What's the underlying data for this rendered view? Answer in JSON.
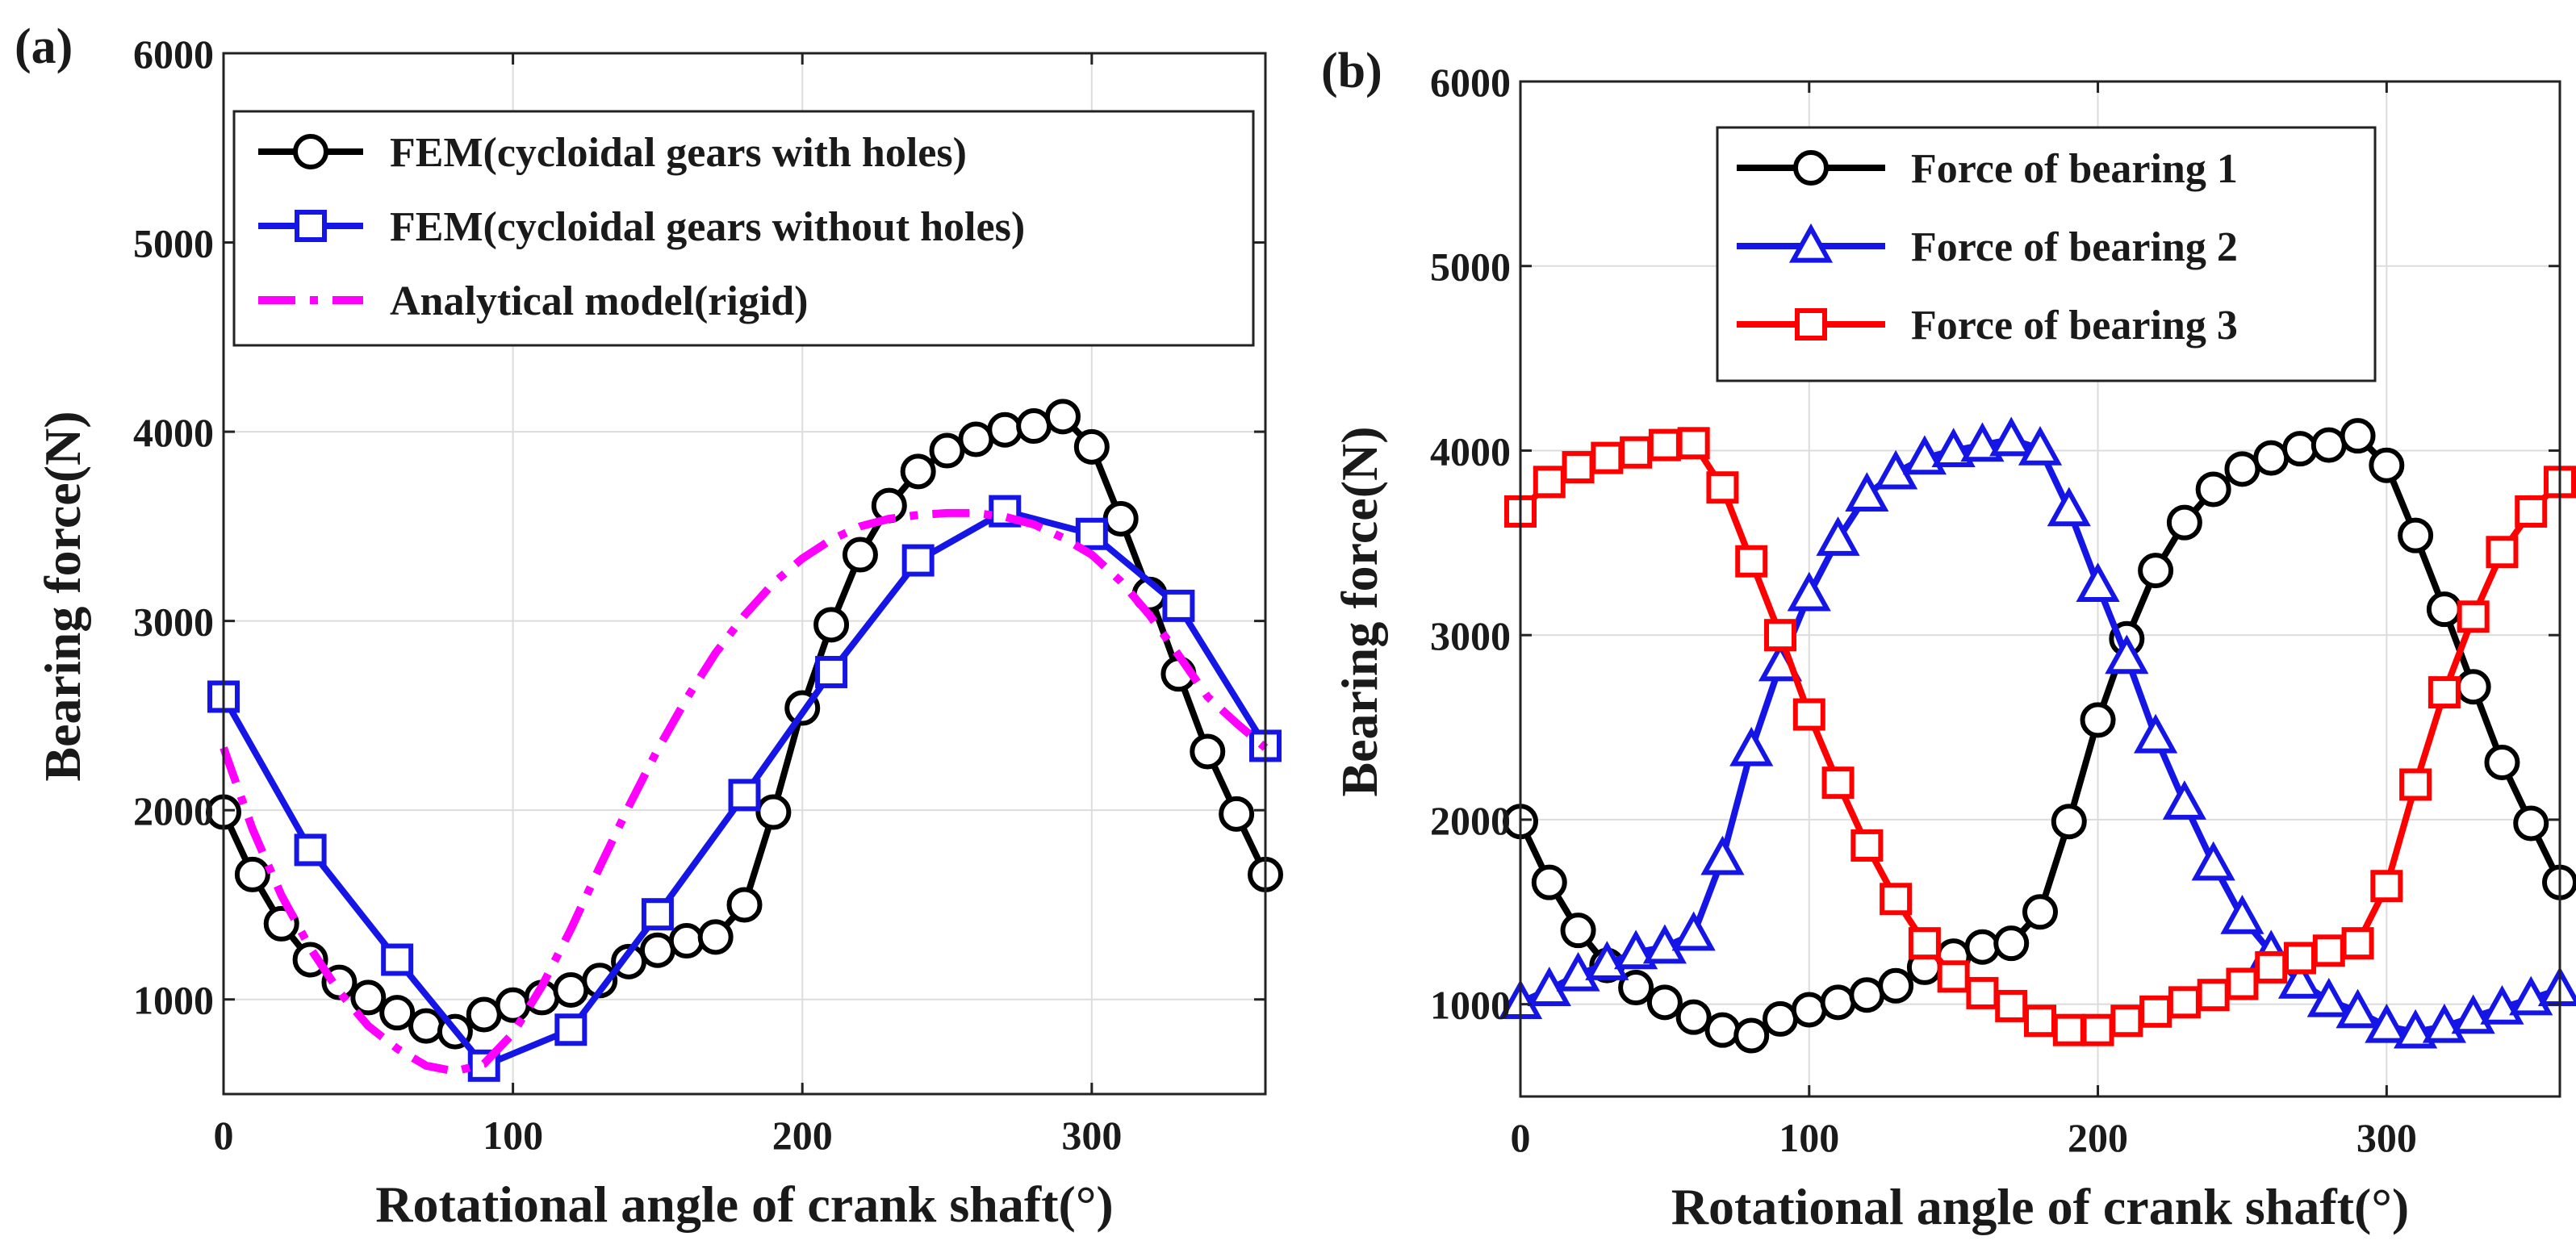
{
  "chart_data": [
    {
      "panel_label": "(a)",
      "type": "line",
      "xlabel": "Rotational angle of crank shaft(°)",
      "ylabel": "Bearing force(N)",
      "xlim": [
        0,
        360
      ],
      "ylim": [
        500,
        6000
      ],
      "xticks": [
        0,
        100,
        200,
        300
      ],
      "yticks": [
        1000,
        2000,
        3000,
        4000,
        5000,
        6000
      ],
      "grid": true,
      "legend_position": "top-left",
      "series": [
        {
          "name": "FEM(cycloidal gears with holes)",
          "color": "#000000",
          "marker": "circle",
          "dash": "solid",
          "x": [
            0,
            10,
            20,
            30,
            40,
            50,
            60,
            70,
            80,
            90,
            100,
            110,
            120,
            130,
            140,
            150,
            160,
            170,
            180,
            190,
            200,
            210,
            220,
            230,
            240,
            250,
            260,
            270,
            280,
            290,
            300,
            310,
            320,
            330,
            340,
            350,
            360
          ],
          "y": [
            1990,
            1660,
            1400,
            1210,
            1090,
            1010,
            930,
            860,
            830,
            920,
            970,
            1010,
            1050,
            1100,
            1200,
            1260,
            1310,
            1330,
            1500,
            1990,
            2540,
            2980,
            3350,
            3610,
            3790,
            3900,
            3960,
            4010,
            4030,
            4080,
            3920,
            3540,
            3140,
            2720,
            2310,
            1980,
            1660
          ]
        },
        {
          "name": "FEM(cycloidal gears without holes)",
          "color": "#1515e6",
          "marker": "square",
          "dash": "solid",
          "x": [
            0,
            30,
            60,
            90,
            120,
            150,
            180,
            210,
            240,
            270,
            300,
            330,
            360
          ],
          "y": [
            2600,
            1790,
            1210,
            650,
            840,
            1450,
            2080,
            2730,
            3320,
            3580,
            3460,
            3080,
            2340
          ]
        },
        {
          "name": "Analytical model(rigid)",
          "color": "#ff00ff",
          "marker": "none",
          "dash": "dash-dot",
          "x": [
            0,
            10,
            20,
            30,
            40,
            50,
            60,
            70,
            80,
            90,
            100,
            110,
            120,
            130,
            140,
            150,
            160,
            170,
            180,
            190,
            200,
            210,
            220,
            230,
            240,
            250,
            260,
            270,
            280,
            290,
            300,
            310,
            320,
            330,
            340,
            350,
            360
          ],
          "y": [
            2330,
            1900,
            1550,
            1270,
            1040,
            860,
            740,
            650,
            620,
            660,
            820,
            1070,
            1370,
            1700,
            2020,
            2320,
            2590,
            2830,
            3030,
            3200,
            3330,
            3430,
            3500,
            3540,
            3560,
            3570,
            3570,
            3550,
            3510,
            3440,
            3350,
            3210,
            3030,
            2820,
            2600,
            2460,
            2330
          ]
        }
      ]
    },
    {
      "panel_label": "(b)",
      "type": "line",
      "xlabel": "Rotational angle of crank shaft(°)",
      "ylabel": "Bearing force(N)",
      "xlim": [
        0,
        360
      ],
      "ylim": [
        500,
        6000
      ],
      "xticks": [
        0,
        100,
        200,
        300
      ],
      "yticks": [
        1000,
        2000,
        3000,
        4000,
        5000,
        6000
      ],
      "grid": true,
      "legend_position": "top-center",
      "series": [
        {
          "name": "Force of bearing 1",
          "color": "#000000",
          "marker": "circle",
          "dash": "solid",
          "x": [
            0,
            10,
            20,
            30,
            40,
            50,
            60,
            70,
            80,
            90,
            100,
            110,
            120,
            130,
            140,
            150,
            160,
            170,
            180,
            190,
            200,
            210,
            220,
            230,
            240,
            250,
            260,
            270,
            280,
            290,
            300,
            310,
            320,
            330,
            340,
            350,
            360
          ],
          "y": [
            1990,
            1660,
            1400,
            1210,
            1090,
            1010,
            930,
            860,
            830,
            920,
            970,
            1010,
            1050,
            1100,
            1200,
            1260,
            1310,
            1330,
            1500,
            1990,
            2540,
            2980,
            3350,
            3610,
            3790,
            3900,
            3960,
            4010,
            4030,
            4080,
            3920,
            3540,
            3140,
            2720,
            2310,
            1980,
            1660
          ]
        },
        {
          "name": "Force of bearing 2",
          "color": "#1515e6",
          "marker": "triangle",
          "dash": "solid",
          "x": [
            0,
            10,
            20,
            30,
            40,
            50,
            60,
            70,
            80,
            90,
            100,
            110,
            120,
            130,
            140,
            150,
            160,
            170,
            180,
            190,
            200,
            210,
            220,
            230,
            240,
            250,
            260,
            270,
            280,
            290,
            300,
            310,
            320,
            330,
            340,
            350,
            360
          ],
          "y": [
            1010,
            1080,
            1160,
            1220,
            1280,
            1310,
            1380,
            1790,
            2380,
            2840,
            3220,
            3520,
            3760,
            3880,
            3960,
            4000,
            4030,
            4060,
            4010,
            3680,
            3270,
            2880,
            2450,
            2090,
            1760,
            1470,
            1280,
            1120,
            1020,
            960,
            880,
            850,
            880,
            930,
            980,
            1030,
            1080
          ]
        },
        {
          "name": "Force of bearing 3",
          "color": "#ff0000",
          "marker": "square",
          "dash": "solid",
          "x": [
            0,
            10,
            20,
            30,
            40,
            50,
            60,
            70,
            80,
            90,
            100,
            110,
            120,
            130,
            140,
            150,
            160,
            170,
            180,
            190,
            200,
            210,
            220,
            230,
            240,
            250,
            260,
            270,
            280,
            290,
            300,
            310,
            320,
            330,
            340,
            350,
            360
          ],
          "y": [
            3670,
            3830,
            3910,
            3960,
            3990,
            4030,
            4040,
            3800,
            3400,
            3000,
            2570,
            2200,
            1860,
            1570,
            1330,
            1150,
            1060,
            990,
            910,
            860,
            860,
            910,
            960,
            1010,
            1050,
            1110,
            1200,
            1250,
            1290,
            1330,
            1640,
            2190,
            2690,
            3100,
            3450,
            3670,
            3830
          ]
        }
      ]
    }
  ]
}
